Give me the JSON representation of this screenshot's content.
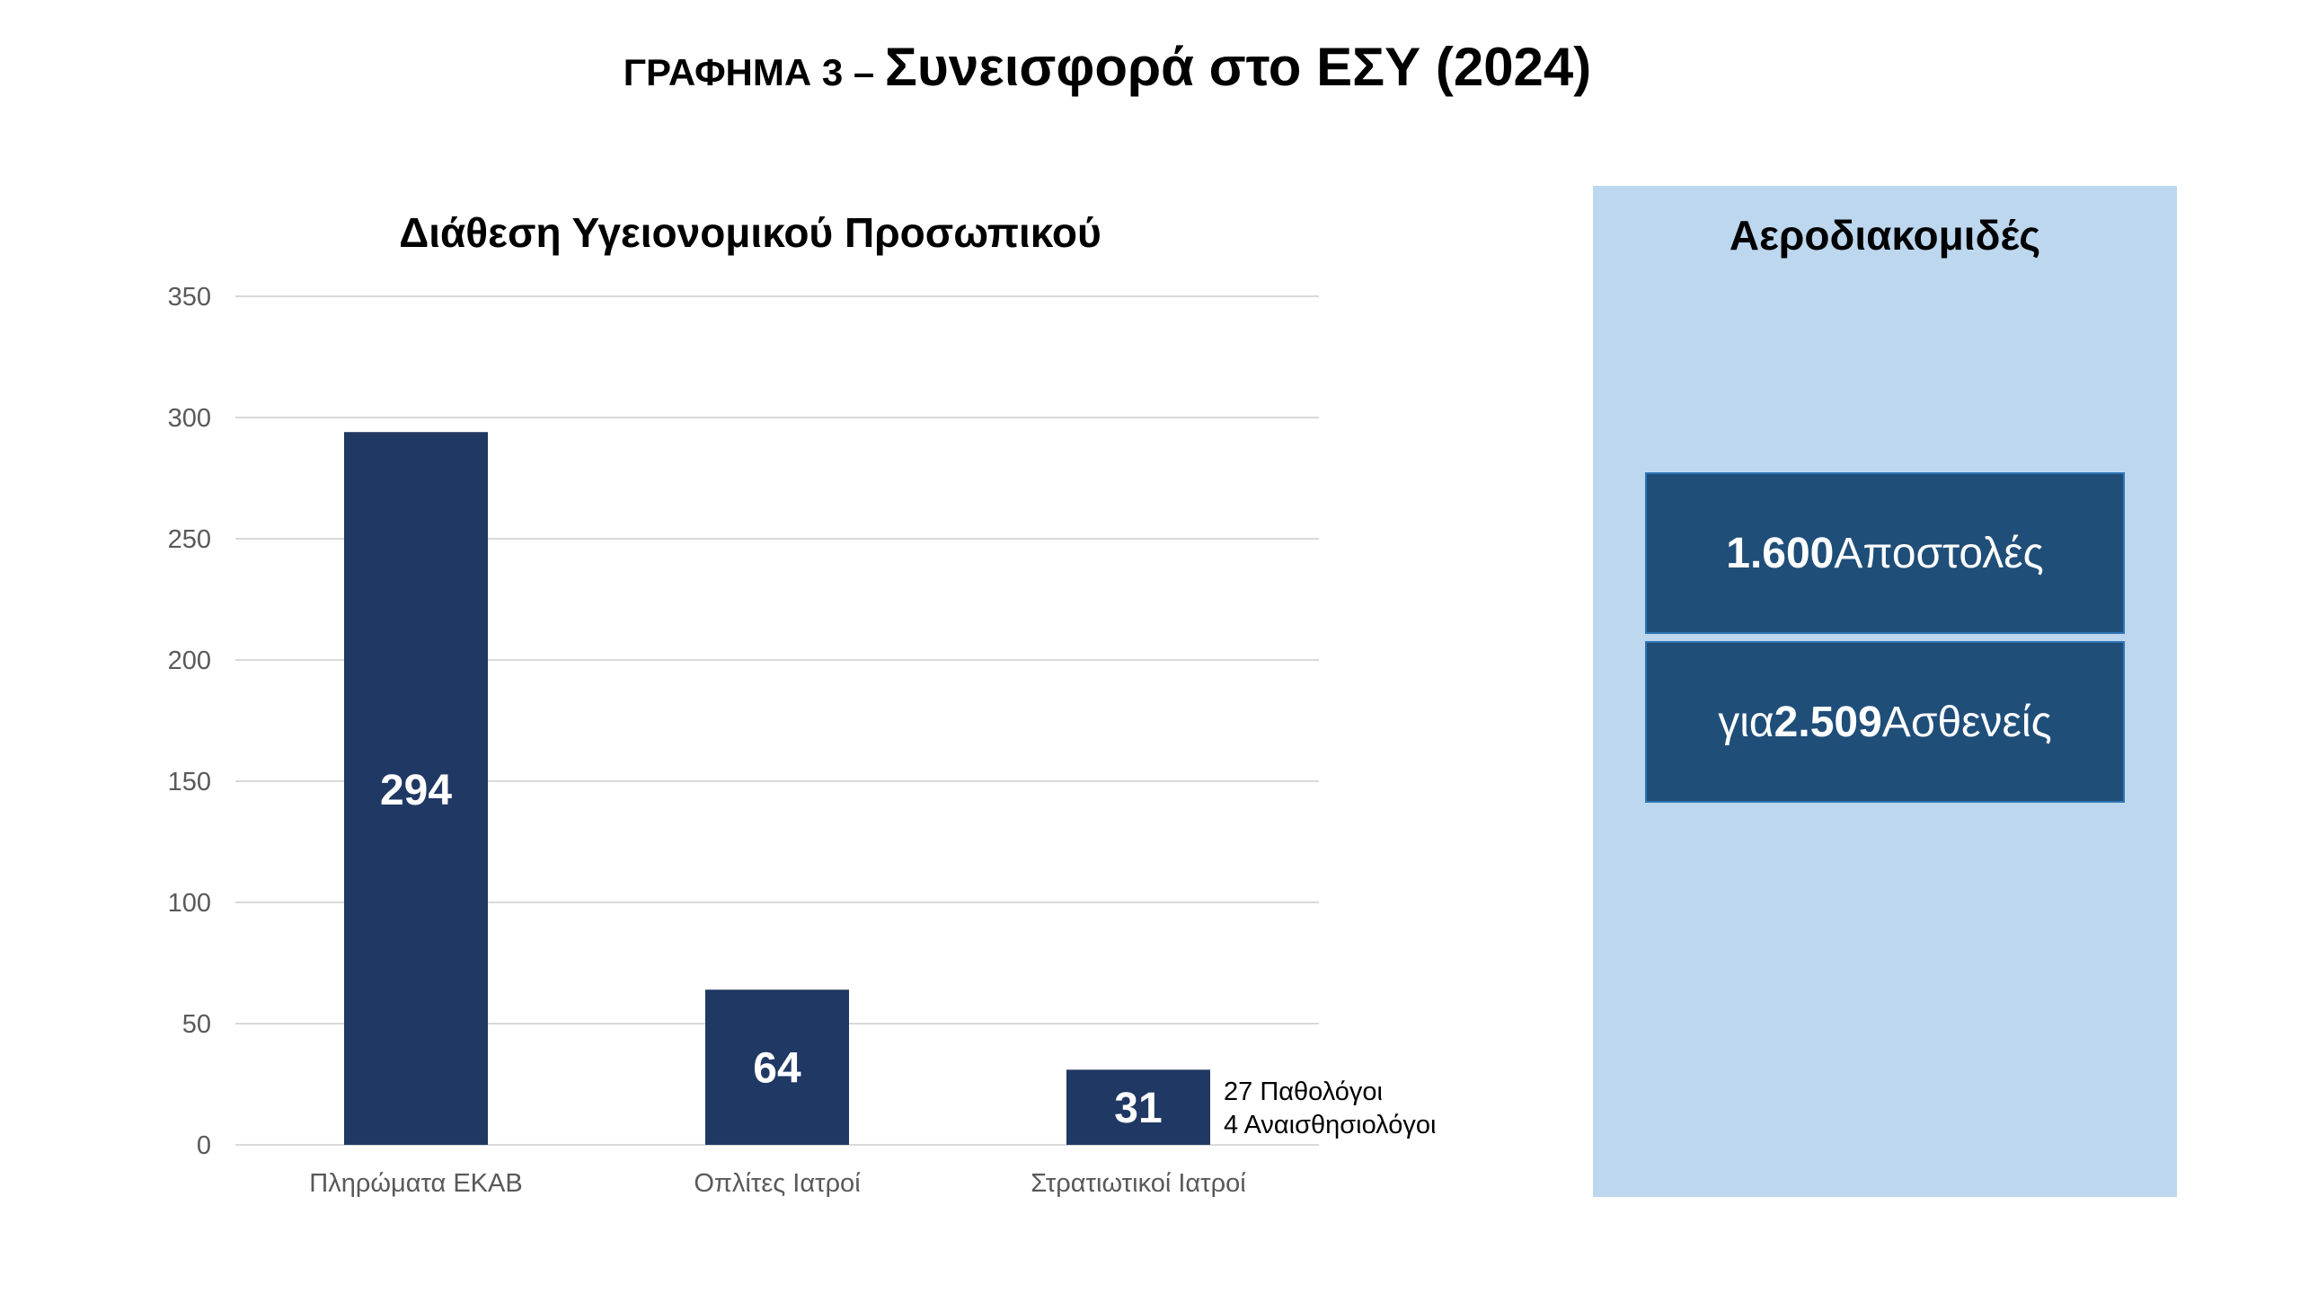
{
  "header": {
    "prefix": "ΓΡΑΦΗΜΑ 3 – ",
    "title": "Συνεισφορά στο ΕΣΥ (2024)"
  },
  "chart_data": {
    "type": "bar",
    "title": "Διάθεση Υγειονομικού Προσωπικού",
    "categories": [
      "Πληρώματα ΕΚΑΒ",
      "Οπλίτες Ιατροί",
      "Στρατιωτικοί Ιατροί"
    ],
    "values": [
      294,
      64,
      31
    ],
    "data_labels": [
      "294",
      "64",
      "31"
    ],
    "ylim": [
      0,
      350
    ],
    "yticks": [
      0,
      50,
      100,
      150,
      200,
      250,
      300,
      350
    ],
    "grid": true,
    "annotations": [
      {
        "category": "Στρατιωτικοί Ιατροί",
        "lines": [
          "27 Παθολόγοι",
          "4 Αναισθησιολόγοι"
        ]
      }
    ],
    "colors": {
      "bar": "#203864",
      "grid": "#d9d9d9",
      "tick_text": "#595959",
      "bar_label": "#ffffff"
    }
  },
  "side_panel": {
    "title": "Αεροδιακομιδές",
    "box1": {
      "number": "1.600",
      "text": " Αποστολές"
    },
    "box2": {
      "pre": "για ",
      "number": "2.509",
      "text": " Ασθενείς"
    },
    "colors": {
      "panel": "#bdd7ee",
      "box": "#1f4e79",
      "box_border": "#2e75b6"
    }
  }
}
